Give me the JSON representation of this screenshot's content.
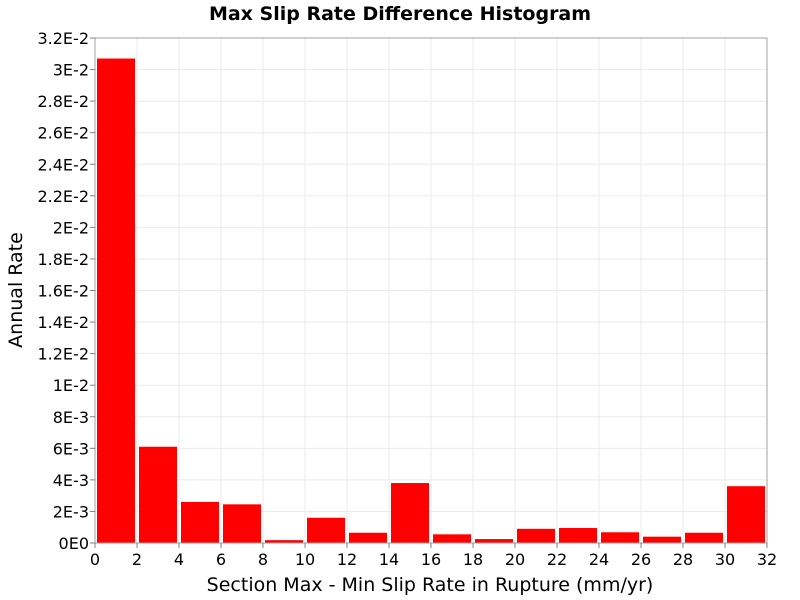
{
  "chart_data": {
    "type": "bar",
    "title": "Max Slip Rate Difference Histogram",
    "xlabel": "Section Max - Min Slip Rate in Rupture (mm/yr)",
    "ylabel": "Annual Rate",
    "xlim": [
      0,
      32
    ],
    "ylim": [
      0,
      0.032
    ],
    "grid": true,
    "bar_color": "#ff0000",
    "bin_width": 2,
    "x": [
      1,
      3,
      5,
      7,
      9,
      11,
      13,
      15,
      17,
      19,
      21,
      23,
      25,
      27,
      29,
      31
    ],
    "values": [
      0.0307,
      0.0061,
      0.0026,
      0.00245,
      0.00018,
      0.0016,
      0.00065,
      0.0038,
      0.00055,
      0.00025,
      0.0009,
      0.00095,
      0.00068,
      0.0004,
      0.00065,
      0.0036
    ],
    "x_ticks": [
      0,
      2,
      4,
      6,
      8,
      10,
      12,
      14,
      16,
      18,
      20,
      22,
      24,
      26,
      28,
      30,
      32
    ],
    "x_tick_labels": [
      "0",
      "2",
      "4",
      "6",
      "8",
      "10",
      "12",
      "14",
      "16",
      "18",
      "20",
      "22",
      "24",
      "26",
      "28",
      "30",
      "32"
    ],
    "y_ticks": [
      0,
      0.002,
      0.004,
      0.006,
      0.008,
      0.01,
      0.012,
      0.014,
      0.016,
      0.018,
      0.02,
      0.022,
      0.024,
      0.026,
      0.028,
      0.03,
      0.032
    ],
    "y_tick_labels": [
      "0E0",
      "2E-3",
      "4E-3",
      "6E-3",
      "8E-3",
      "1E-2",
      "1.2E-2",
      "1.4E-2",
      "1.6E-2",
      "1.8E-2",
      "2E-2",
      "2.2E-2",
      "2.4E-2",
      "2.6E-2",
      "2.8E-2",
      "3E-2",
      "3.2E-2"
    ]
  }
}
